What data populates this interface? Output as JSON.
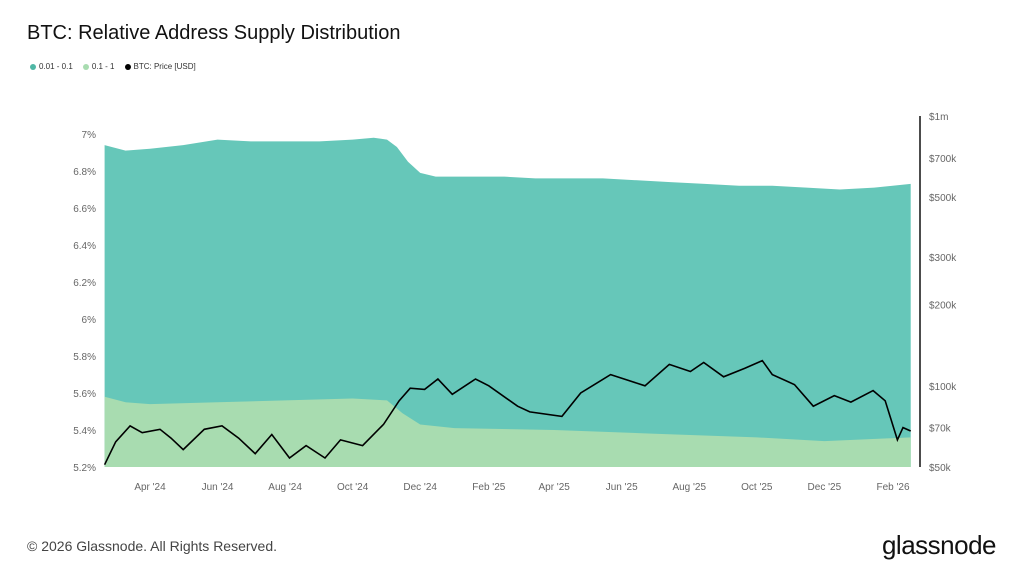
{
  "title": "BTC: Relative Address Supply Distribution",
  "footer": "© 2026 Glassnode. All Rights Reserved.",
  "logo": "glassnode",
  "watermark": "glassnode",
  "chart_data": {
    "type": "area",
    "title": "BTC: Relative Address Supply Distribution",
    "legend_placement": "top-left",
    "grid": false,
    "x_ticks": [
      "Apr '24",
      "Jun '24",
      "Aug '24",
      "Oct '24",
      "Dec '24",
      "Feb '25",
      "Apr '25",
      "Jun '25",
      "Aug '25",
      "Oct '25",
      "Dec '25",
      "Feb '26"
    ],
    "x_tick_dates": [
      "2024-04-01",
      "2024-06-01",
      "2024-08-01",
      "2024-10-01",
      "2024-12-01",
      "2025-02-01",
      "2025-04-01",
      "2025-06-01",
      "2025-08-01",
      "2025-10-01",
      "2025-12-01",
      "2026-02-01"
    ],
    "y_left": {
      "ylim": [
        5.2,
        7.0
      ],
      "ticks": [
        "5.2%",
        "5.4%",
        "5.6%",
        "5.8%",
        "6%",
        "6.2%",
        "6.4%",
        "6.6%",
        "6.8%",
        "7%"
      ],
      "tick_values": [
        5.2,
        5.4,
        5.6,
        5.8,
        6.0,
        6.2,
        6.4,
        6.6,
        6.8,
        7.0
      ]
    },
    "y_right": {
      "scale": "log",
      "ylim": [
        50000,
        1000000
      ],
      "ticks": [
        "$50k",
        "$70k",
        "$100k",
        "$200k",
        "$300k",
        "$500k",
        "$700k",
        "$1m"
      ],
      "tick_values": [
        50000,
        70000,
        100000,
        200000,
        300000,
        500000,
        700000,
        1000000
      ]
    },
    "series": [
      {
        "name": "0.01 - 0.1",
        "color": "#66c7b9",
        "axis": "left",
        "type": "area",
        "x": [
          "2024-02-20",
          "2024-03-10",
          "2024-04-01",
          "2024-05-01",
          "2024-06-01",
          "2024-07-01",
          "2024-08-01",
          "2024-09-01",
          "2024-10-01",
          "2024-10-20",
          "2024-11-01",
          "2024-11-10",
          "2024-11-20",
          "2024-12-01",
          "2024-12-15",
          "2025-01-15",
          "2025-02-15",
          "2025-03-15",
          "2025-04-15",
          "2025-05-15",
          "2025-06-15",
          "2025-07-15",
          "2025-08-15",
          "2025-09-15",
          "2025-10-15",
          "2025-11-15",
          "2025-12-15",
          "2026-01-15",
          "2026-02-17"
        ],
        "values": [
          6.94,
          6.91,
          6.92,
          6.94,
          6.97,
          6.96,
          6.96,
          6.96,
          6.97,
          6.98,
          6.97,
          6.93,
          6.85,
          6.79,
          6.77,
          6.77,
          6.77,
          6.76,
          6.76,
          6.76,
          6.75,
          6.74,
          6.73,
          6.72,
          6.72,
          6.71,
          6.7,
          6.71,
          6.73
        ]
      },
      {
        "name": "0.1 - 1",
        "color": "#a8dcb0",
        "axis": "left",
        "type": "area",
        "x": [
          "2024-02-20",
          "2024-03-10",
          "2024-04-01",
          "2024-06-01",
          "2024-08-01",
          "2024-10-01",
          "2024-11-01",
          "2024-11-15",
          "2024-12-01",
          "2025-01-01",
          "2025-04-01",
          "2025-07-01",
          "2025-10-01",
          "2025-12-01",
          "2026-02-17"
        ],
        "values": [
          5.58,
          5.55,
          5.54,
          5.55,
          5.56,
          5.57,
          5.56,
          5.49,
          5.43,
          5.41,
          5.4,
          5.38,
          5.36,
          5.34,
          5.36
        ]
      },
      {
        "name": "BTC: Price [USD]",
        "color": "#000000",
        "axis": "right",
        "type": "line",
        "x": [
          "2024-02-20",
          "2024-03-01",
          "2024-03-14",
          "2024-03-25",
          "2024-04-10",
          "2024-04-20",
          "2024-05-01",
          "2024-05-20",
          "2024-06-05",
          "2024-06-20",
          "2024-07-05",
          "2024-07-20",
          "2024-08-05",
          "2024-08-20",
          "2024-09-06",
          "2024-09-20",
          "2024-10-10",
          "2024-10-29",
          "2024-11-12",
          "2024-11-22",
          "2024-12-05",
          "2024-12-17",
          "2024-12-30",
          "2025-01-20",
          "2025-02-01",
          "2025-02-27",
          "2025-03-10",
          "2025-04-08",
          "2025-04-25",
          "2025-05-22",
          "2025-06-22",
          "2025-07-14",
          "2025-08-02",
          "2025-08-14",
          "2025-09-01",
          "2025-09-20",
          "2025-10-06",
          "2025-10-15",
          "2025-11-04",
          "2025-11-21",
          "2025-12-10",
          "2025-12-25",
          "2026-01-14",
          "2026-01-25",
          "2026-02-05",
          "2026-02-10",
          "2026-02-17"
        ],
        "values": [
          51000,
          62000,
          71000,
          67000,
          69000,
          64000,
          58000,
          69000,
          71000,
          64000,
          56000,
          66000,
          54000,
          60000,
          54000,
          63000,
          60000,
          72000,
          88000,
          98000,
          97000,
          106000,
          93000,
          106000,
          100000,
          84000,
          80000,
          77000,
          94000,
          110000,
          100000,
          120000,
          113000,
          122000,
          108000,
          116000,
          124000,
          110000,
          101000,
          84000,
          92000,
          87000,
          96000,
          88000,
          63000,
          70000,
          68000
        ]
      }
    ]
  }
}
